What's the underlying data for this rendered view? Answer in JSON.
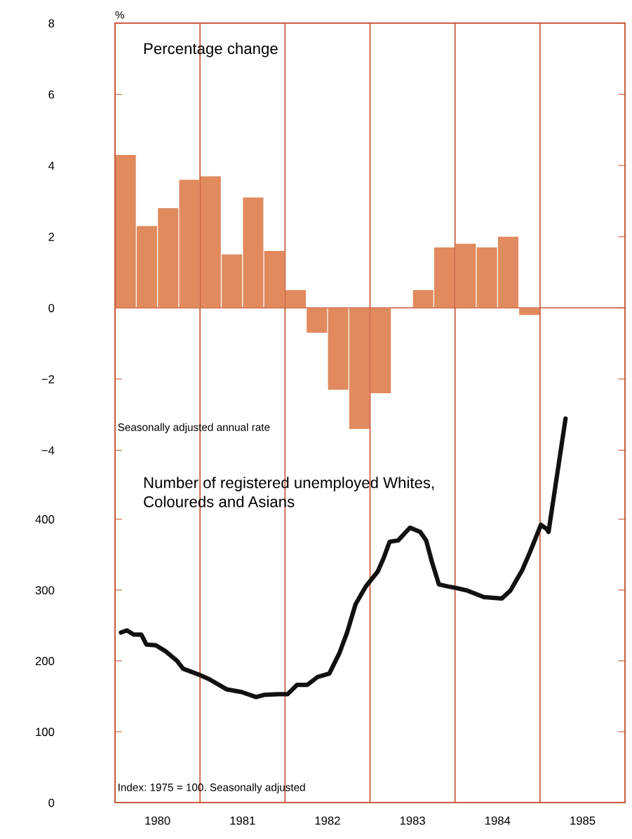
{
  "chart_data": [
    {
      "type": "bar",
      "title": "Percentage change",
      "ylabel": "%",
      "x": [
        1980.125,
        1980.375,
        1980.625,
        1980.875,
        1981.125,
        1981.375,
        1981.625,
        1981.875,
        1982.125,
        1982.375,
        1982.625,
        1982.875,
        1983.125,
        1983.375,
        1983.625,
        1983.875,
        1984.125,
        1984.375,
        1984.625,
        1984.875
      ],
      "values": [
        4.3,
        2.3,
        2.8,
        3.6,
        3.7,
        1.5,
        3.1,
        1.6,
        0.5,
        -0.7,
        -2.3,
        -3.4,
        -2.4,
        0,
        0.5,
        1.7,
        1.8,
        1.7,
        2.0,
        -0.2
      ],
      "color": "#e08a5e",
      "xlim": [
        1980,
        1986
      ],
      "ylim": [
        -13.9,
        8
      ],
      "yticks": [
        -4,
        -2,
        0,
        2,
        4,
        6,
        8
      ],
      "tick_labels": "y",
      "ref_lines": [
        {
          "axis": "y",
          "value": 0,
          "color": "#c8553a"
        },
        {
          "axis": "x",
          "value": 1981,
          "color": "#c8553a"
        },
        {
          "axis": "x",
          "value": 1982,
          "color": "#c8553a"
        },
        {
          "axis": "x",
          "value": 1983,
          "color": "#c8553a"
        },
        {
          "axis": "x",
          "value": 1984,
          "color": "#c8553a"
        },
        {
          "axis": "x",
          "value": 1985,
          "color": "#c8553a"
        }
      ],
      "annotations": [
        "Seasonally adjusted annual rate"
      ]
    },
    {
      "type": "line",
      "title": "Number of registered unemployed Whites,\nColoureds and Asians",
      "x": [
        1980.07,
        1980.14,
        1980.22,
        1980.31,
        1980.37,
        1980.48,
        1980.59,
        1980.73,
        1980.8,
        1981.0,
        1981.11,
        1981.31,
        1981.49,
        1981.66,
        1981.75,
        1981.92,
        1982.03,
        1982.14,
        1982.26,
        1982.38,
        1982.52,
        1982.64,
        1982.73,
        1982.83,
        1982.95,
        1983.09,
        1983.16,
        1983.23,
        1983.33,
        1983.47,
        1983.59,
        1983.66,
        1983.73,
        1983.81,
        1983.92,
        1984.01,
        1984.15,
        1984.34,
        1984.55,
        1984.65,
        1984.79,
        1984.89,
        1985.01,
        1985.08,
        1985.1,
        1985.3
      ],
      "values": [
        240,
        243,
        237,
        237,
        223,
        222,
        214,
        200,
        189,
        180,
        174,
        160,
        156,
        149,
        152,
        153,
        153,
        166,
        166,
        177,
        182,
        211,
        240,
        280,
        305,
        326,
        345,
        368,
        370,
        388,
        382,
        370,
        339,
        308,
        305,
        303,
        299,
        290,
        288,
        299,
        328,
        356,
        392,
        386,
        382,
        542
      ],
      "color": "#111111",
      "xlim": [
        1980,
        1986
      ],
      "ylim": [
        0,
        1100
      ],
      "yticks": [
        0,
        100,
        200,
        300,
        400
      ],
      "xticks": [
        {
          "value": 1980.5,
          "label": "1980"
        },
        {
          "value": 1981.5,
          "label": "1981"
        },
        {
          "value": 1982.5,
          "label": "1982"
        },
        {
          "value": 1983.5,
          "label": "1983"
        },
        {
          "value": 1984.5,
          "label": "1984"
        },
        {
          "value": 1985.5,
          "label": "1985"
        }
      ],
      "annotations": [
        "Index: 1975 = 100. Seasonally adjusted"
      ]
    }
  ]
}
